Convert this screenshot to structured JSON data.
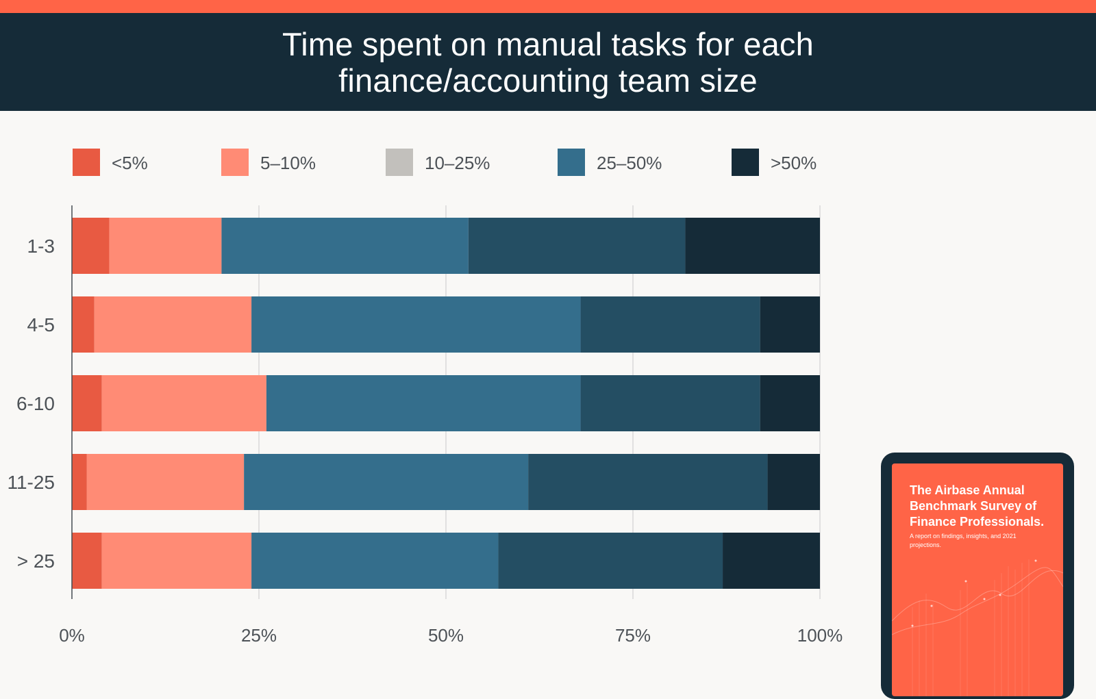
{
  "header": {
    "title_line1": "Time spent on manual tasks for each",
    "title_line2": "finance/accounting team size"
  },
  "colors": {
    "accent": "#ff6447",
    "header_bg": "#152b38",
    "lt5": "#e85a42",
    "p5_10": "#ff8b75",
    "p10_25": "#c2c0bc",
    "p25_50": "#346e8c",
    "gt50": "#152b38",
    "extra_segment": "#244e63"
  },
  "chart_data": {
    "type": "bar",
    "orientation": "horizontal",
    "stacked": true,
    "categories": [
      "1-3",
      "4-5",
      "6-10",
      "11-25",
      "> 25"
    ],
    "legend": [
      "<5%",
      "5–10%",
      "10–25%",
      "25–50%",
      ">50%"
    ],
    "legend_placement": "top",
    "x_ticks": [
      "0%",
      "25%",
      "50%",
      "75%",
      "100%"
    ],
    "xlim": [
      0,
      100
    ],
    "grid": true,
    "series": [
      {
        "color": "#e85a42",
        "values": [
          5,
          3,
          4,
          2,
          4
        ]
      },
      {
        "color": "#ff8b75",
        "values": [
          15,
          21,
          22,
          21,
          20
        ]
      },
      {
        "color": "#346e8c",
        "values": [
          33,
          44,
          42,
          38,
          33
        ]
      },
      {
        "color": "#244e63",
        "values": [
          29,
          24,
          24,
          32,
          30
        ]
      },
      {
        "color": "#152b38",
        "values": [
          18,
          8,
          8,
          7,
          13
        ]
      }
    ]
  },
  "promo": {
    "cover_title": "The Airbase Annual Benchmark Survey of Finance Professionals.",
    "cover_subtitle": "A report on findings, insights, and 2021 projections."
  }
}
